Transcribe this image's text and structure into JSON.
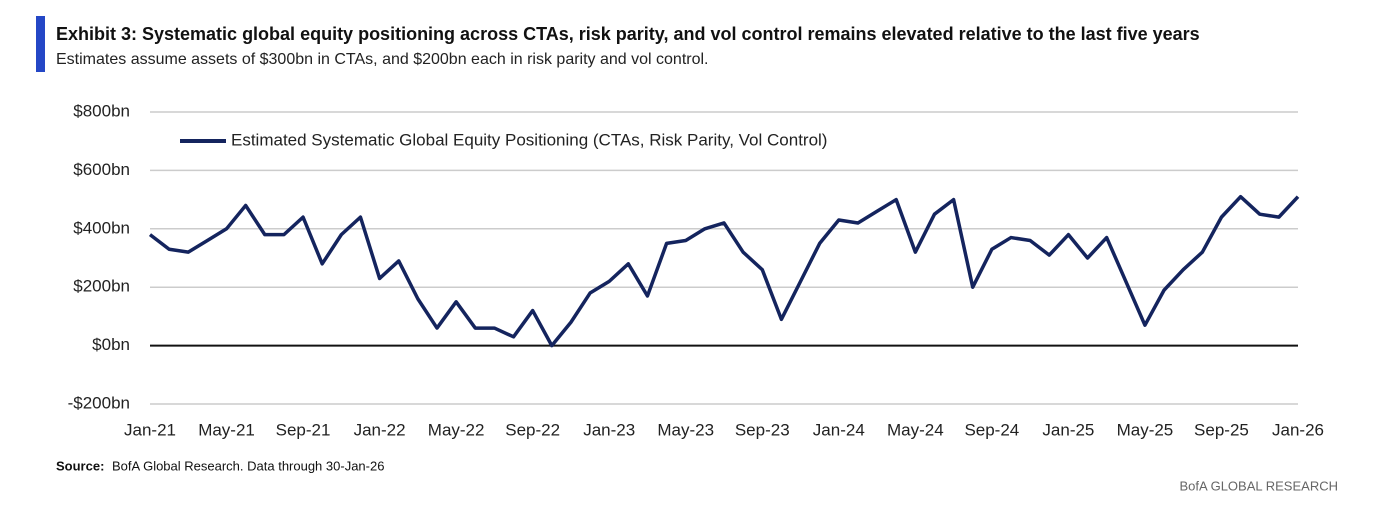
{
  "chart_data": {
    "type": "line",
    "title": "Exhibit 3: Systematic global equity positioning across CTAs, risk parity, and vol control remains elevated relative to the last five years",
    "subtitle": "Estimates assume assets of $300bn in CTAs, and $200bn each in risk parity and vol control.",
    "source_label": "Source:",
    "source": "BofA Global Research.  Data through 30-Jan-26",
    "brand": "BofA GLOBAL RESEARCH",
    "x": [
      "Jan-21",
      "Feb-21",
      "Mar-21",
      "Apr-21",
      "May-21",
      "Jun-21",
      "Jul-21",
      "Aug-21",
      "Sep-21",
      "Oct-21",
      "Nov-21",
      "Dec-21",
      "Jan-22",
      "Feb-22",
      "Mar-22",
      "Apr-22",
      "May-22",
      "Jun-22",
      "Jul-22",
      "Aug-22",
      "Sep-22",
      "Oct-22",
      "Nov-22",
      "Dec-22",
      "Jan-23",
      "Feb-23",
      "Mar-23",
      "Apr-23",
      "May-23",
      "Jun-23",
      "Jul-23",
      "Aug-23",
      "Sep-23",
      "Oct-23",
      "Nov-23",
      "Dec-23",
      "Jan-24",
      "Feb-24",
      "Mar-24",
      "Apr-24",
      "May-24",
      "Jun-24",
      "Jul-24",
      "Aug-24",
      "Sep-24",
      "Oct-24",
      "Nov-24",
      "Dec-24",
      "Jan-25",
      "Feb-25",
      "Mar-25",
      "Apr-25",
      "May-25",
      "Jun-25",
      "Jul-25",
      "Aug-25",
      "Sep-25",
      "Oct-25",
      "Nov-25",
      "Dec-25",
      "Jan-26"
    ],
    "series": [
      {
        "name": "Estimated Systematic Global Equity Positioning (CTAs, Risk Parity, Vol Control)",
        "color": "#14245e",
        "values": [
          380,
          330,
          320,
          360,
          400,
          480,
          380,
          380,
          440,
          280,
          380,
          440,
          230,
          290,
          160,
          60,
          150,
          60,
          60,
          30,
          120,
          0,
          80,
          180,
          220,
          280,
          170,
          350,
          360,
          400,
          420,
          320,
          260,
          90,
          220,
          350,
          430,
          420,
          460,
          500,
          320,
          450,
          500,
          200,
          330,
          370,
          360,
          310,
          380,
          300,
          370,
          220,
          70,
          190,
          260,
          320,
          440,
          510,
          450,
          440,
          510
        ]
      }
    ],
    "ylim": [
      -200,
      800
    ],
    "yticks": [
      {
        "value": -200,
        "label": "-$200bn"
      },
      {
        "value": 0,
        "label": "$0bn"
      },
      {
        "value": 200,
        "label": "$200bn"
      },
      {
        "value": 400,
        "label": "$400bn"
      },
      {
        "value": 600,
        "label": "$600bn"
      },
      {
        "value": 800,
        "label": "$800bn"
      }
    ],
    "grid": true
  }
}
